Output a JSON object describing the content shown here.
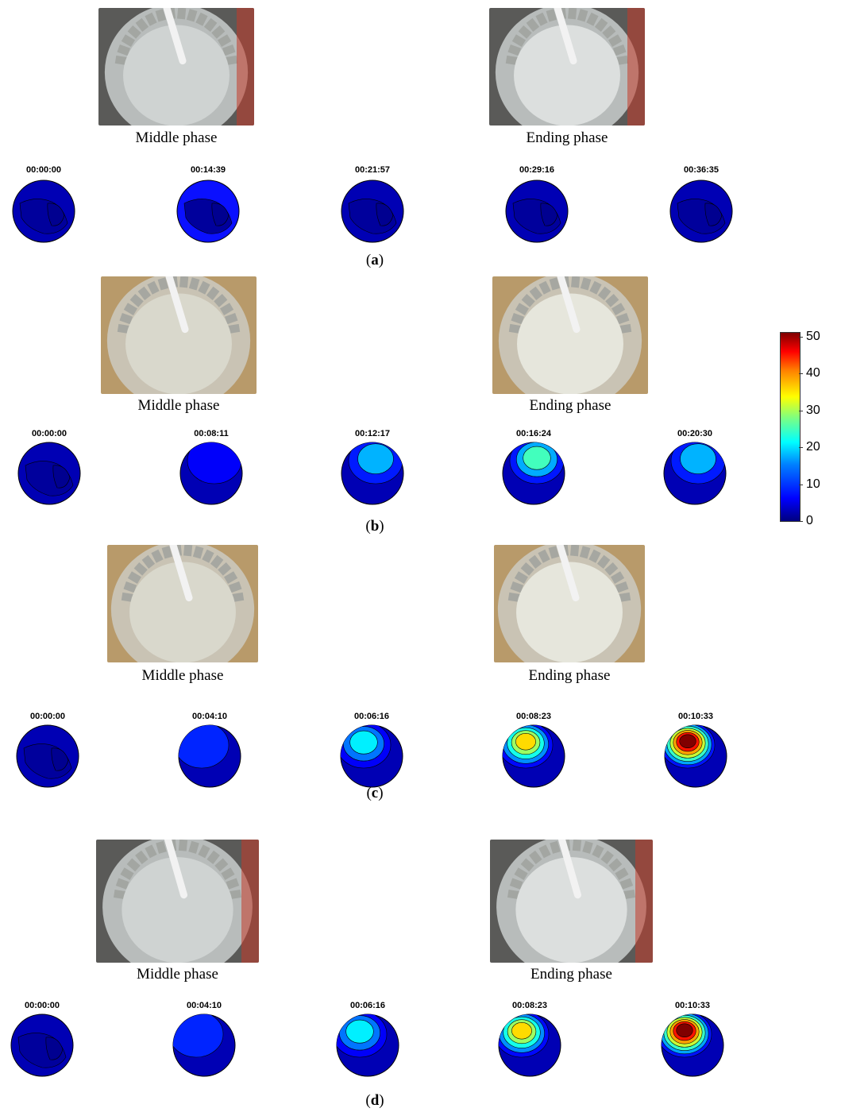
{
  "panels": [
    {
      "label": "a",
      "photo_captions": [
        "Middle phase",
        "Ending phase"
      ],
      "photo_style": "grey",
      "timestamps": [
        "00:00:00",
        "00:14:39",
        "00:21:57",
        "00:29:16",
        "00:36:35"
      ],
      "hotspot_levels": [
        0,
        0,
        0,
        0,
        0
      ]
    },
    {
      "label": "b",
      "photo_captions": [
        "Middle phase",
        "Ending phase"
      ],
      "photo_style": "tan",
      "timestamps": [
        "00:00:00",
        "00:08:11",
        "00:12:17",
        "00:16:24",
        "00:20:30"
      ],
      "hotspot_levels": [
        0,
        6,
        15,
        22,
        15
      ]
    },
    {
      "label": "c",
      "photo_captions": [
        "Middle phase",
        "Ending phase"
      ],
      "photo_style": "tan",
      "timestamps": [
        "00:00:00",
        "00:04:10",
        "00:06:16",
        "00:08:23",
        "00:10:33"
      ],
      "hotspot_levels": [
        0,
        8,
        18,
        33,
        50
      ]
    },
    {
      "label": "d",
      "photo_captions": [
        "Middle phase",
        "Ending phase"
      ],
      "photo_style": "grey",
      "timestamps": [
        "00:00:00",
        "00:04:10",
        "00:06:16",
        "00:08:23",
        "00:10:33"
      ],
      "hotspot_levels": [
        0,
        8,
        18,
        33,
        50
      ]
    }
  ],
  "colorbar": {
    "ticks": [
      "50",
      "40",
      "30",
      "20",
      "10",
      "0"
    ],
    "range": [
      0,
      50
    ],
    "colormap": "jet"
  }
}
